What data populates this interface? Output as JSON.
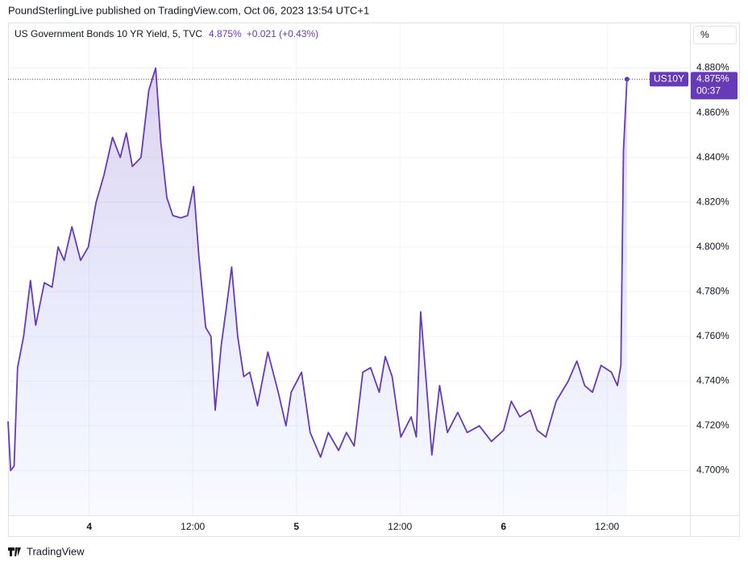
{
  "header": "PoundSterlingLive published on TradingView.com, Oct 06, 2023 13:54 UTC+1",
  "footer": "TradingView",
  "unit_button": "%",
  "chart_data": {
    "type": "line",
    "legend_values": {
      "last": "4.875%",
      "change": "+0.021 (+0.43%)"
    },
    "price_label": {
      "symbol": "US10Y",
      "value": "4.875%",
      "countdown": "00:37"
    },
    "grid": true,
    "fill": true,
    "x": [
      -9.4,
      -9.1,
      -8.7,
      -8.3,
      -7.6,
      -6.8,
      -6.2,
      -5.2,
      -4.3,
      -3.6,
      -2.9,
      -2.0,
      -1.0,
      -0.1,
      0.8,
      1.7,
      2.7,
      3.6,
      4.3,
      5.0,
      6.0,
      6.9,
      7.7,
      8.3,
      9.0,
      9.7,
      10.6,
      11.4,
      12.1,
      12.7,
      13.5,
      14.1,
      14.6,
      15.3,
      15.9,
      16.5,
      17.2,
      17.9,
      18.6,
      19.5,
      20.7,
      21.9,
      22.8,
      23.4,
      24.6,
      25.6,
      26.8,
      27.7,
      28.9,
      29.8,
      30.7,
      31.7,
      32.6,
      33.6,
      34.3,
      35.1,
      36.1,
      37.3,
      37.9,
      38.4,
      39.0,
      39.7,
      40.6,
      41.5,
      42.7,
      43.8,
      45.2,
      46.6,
      48.0,
      48.9,
      49.9,
      51.1,
      51.9,
      52.9,
      54.1,
      55.5,
      56.5,
      57.4,
      58.3,
      59.3,
      60.5,
      61.2,
      61.6,
      61.9,
      62.3
    ],
    "series": [
      {
        "name": "US Government Bonds 10 YR Yield, 5, TVC",
        "color": "#673ab7",
        "values": [
          4.722,
          4.7,
          4.702,
          4.746,
          4.76,
          4.785,
          4.765,
          4.784,
          4.782,
          4.8,
          4.794,
          4.809,
          4.794,
          4.8,
          4.82,
          4.832,
          4.849,
          4.84,
          4.851,
          4.836,
          4.84,
          4.87,
          4.88,
          4.847,
          4.822,
          4.814,
          4.813,
          4.814,
          4.827,
          4.796,
          4.764,
          4.76,
          4.727,
          4.756,
          4.773,
          4.791,
          4.76,
          4.742,
          4.744,
          4.729,
          4.753,
          4.735,
          4.72,
          4.735,
          4.744,
          4.717,
          4.706,
          4.717,
          4.709,
          4.717,
          4.711,
          4.744,
          4.746,
          4.735,
          4.751,
          4.742,
          4.715,
          4.724,
          4.715,
          4.771,
          4.742,
          4.707,
          4.738,
          4.717,
          4.726,
          4.717,
          4.72,
          4.713,
          4.718,
          4.731,
          4.724,
          4.727,
          4.718,
          4.715,
          4.731,
          4.74,
          4.749,
          4.738,
          4.735,
          4.747,
          4.744,
          4.738,
          4.747,
          4.843,
          4.875
        ]
      }
    ],
    "xlim": [
      -9.4,
      69.6
    ],
    "xticks": [
      {
        "value": 0,
        "label": "4"
      },
      {
        "value": 12,
        "label": "12:00"
      },
      {
        "value": 24,
        "label": "5"
      },
      {
        "value": 36,
        "label": "12:00"
      },
      {
        "value": 48,
        "label": "6"
      },
      {
        "value": 60,
        "label": "12:00"
      }
    ],
    "ylim": [
      4.68,
      4.9
    ],
    "yticks": [
      {
        "value": 4.7,
        "label": "4.700%"
      },
      {
        "value": 4.72,
        "label": "4.720%"
      },
      {
        "value": 4.74,
        "label": "4.740%"
      },
      {
        "value": 4.76,
        "label": "4.760%"
      },
      {
        "value": 4.78,
        "label": "4.780%"
      },
      {
        "value": 4.8,
        "label": "4.800%"
      },
      {
        "value": 4.82,
        "label": "4.820%"
      },
      {
        "value": 4.84,
        "label": "4.840%"
      },
      {
        "value": 4.86,
        "label": "4.860%"
      },
      {
        "value": 4.88,
        "label": "4.880%"
      }
    ]
  }
}
